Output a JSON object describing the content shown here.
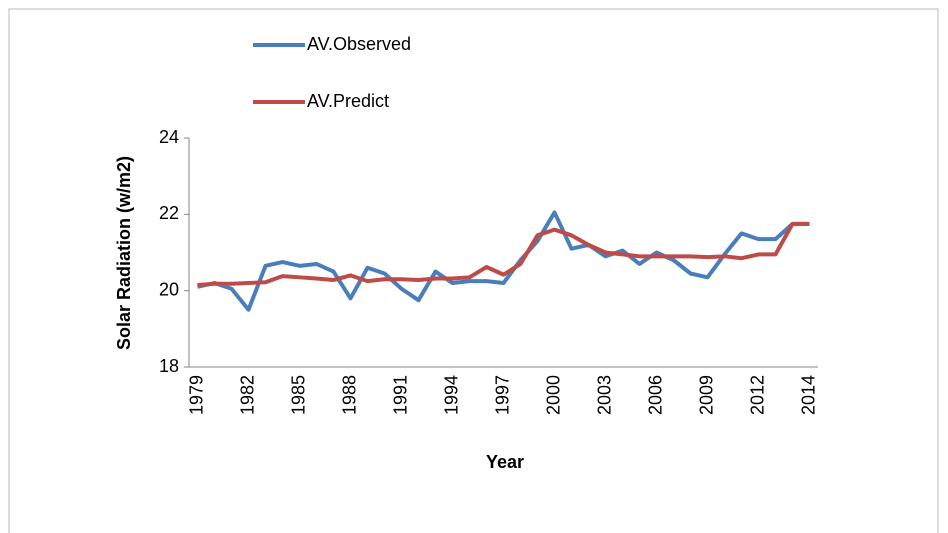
{
  "chart_data": {
    "type": "line",
    "x_label": "Year",
    "y_label": "Solar Radiation (w/m2)",
    "categories": [
      "1979",
      null,
      null,
      "1982",
      null,
      null,
      "1985",
      null,
      null,
      "1988",
      null,
      null,
      "1991",
      null,
      null,
      "1994",
      null,
      null,
      "1997",
      null,
      null,
      "2000",
      null,
      null,
      "2003",
      null,
      null,
      "2006",
      null,
      null,
      "2009",
      null,
      null,
      "2012",
      null,
      null,
      "2014"
    ],
    "series": [
      {
        "name": "AV.Observed",
        "color": "#4a7ebb",
        "values": [
          20.1,
          20.2,
          20.05,
          19.5,
          20.65,
          20.75,
          20.65,
          20.7,
          20.5,
          19.8,
          20.6,
          20.45,
          20.05,
          19.75,
          20.5,
          20.2,
          20.25,
          20.25,
          20.2,
          20.8,
          21.3,
          22.05,
          21.1,
          21.2,
          20.9,
          21.05,
          20.7,
          21.0,
          20.8,
          20.45,
          20.35,
          20.95,
          21.5,
          21.35,
          21.35,
          21.75,
          21.75
        ]
      },
      {
        "name": "AV.Predict",
        "color": "#be4b48",
        "values": [
          20.15,
          20.18,
          20.18,
          20.2,
          20.22,
          20.38,
          20.35,
          20.32,
          20.28,
          20.4,
          20.25,
          20.3,
          20.3,
          20.28,
          20.32,
          20.32,
          20.35,
          20.62,
          20.42,
          20.7,
          21.45,
          21.6,
          21.45,
          21.2,
          21.0,
          20.95,
          20.9,
          20.9,
          20.9,
          20.9,
          20.88,
          20.9,
          20.85,
          20.95,
          20.95,
          21.75,
          21.75
        ]
      }
    ],
    "ylim": [
      18,
      24
    ],
    "yticks": [
      18,
      20,
      22,
      24
    ],
    "grid": false,
    "legend_position": "top-left"
  }
}
